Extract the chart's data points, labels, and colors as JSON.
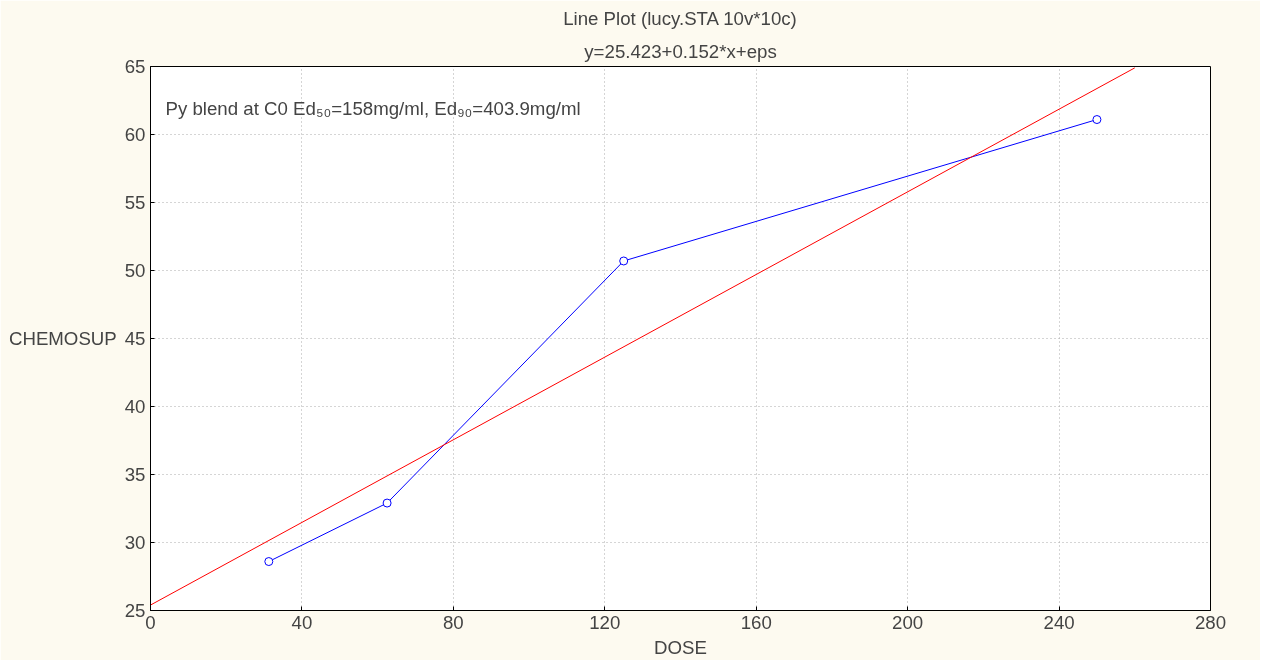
{
  "chart_data": {
    "type": "line",
    "title": "Line Plot (lucy.STA 10v*10c)",
    "subtitle": "y=25.423+0.152*x+eps",
    "xlabel": "DOSE",
    "ylabel": "CHEMOSUP",
    "annotations": [
      "Py blend at C0 Ed₅₀=158mg/ml, Ed₉₀=403.9mg/ml"
    ],
    "series": [
      {
        "color": "#0000ff",
        "x": [
          31.25,
          62.5,
          125,
          250
        ],
        "values": [
          28.6,
          32.9,
          50.7,
          61.1
        ],
        "marker": "circle"
      },
      {
        "color": "#ff0000",
        "x": [
          0,
          260
        ],
        "values": [
          25.4,
          64.9
        ],
        "marker": "none"
      }
    ],
    "xlim": [
      0,
      280
    ],
    "ylim": [
      25,
      65
    ],
    "xticks": [
      0,
      40,
      80,
      120,
      160,
      200,
      240,
      280
    ],
    "yticks": [
      25,
      30,
      35,
      40,
      45,
      50,
      55,
      60,
      65
    ],
    "grid": true,
    "line_style": "solid"
  }
}
